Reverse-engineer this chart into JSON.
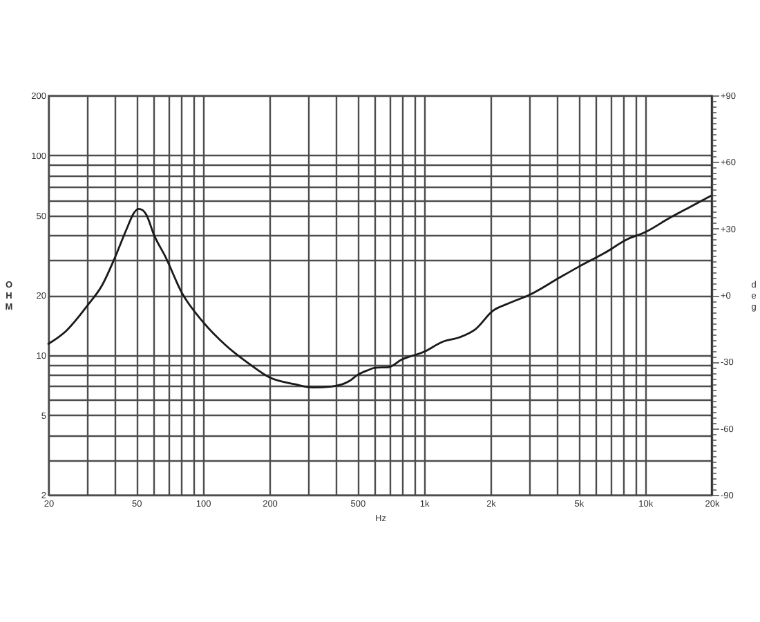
{
  "chart_data": {
    "type": "line",
    "xlabel": "Hz",
    "ylabel": "OHM",
    "y2label": "deg",
    "log": "xy",
    "grid": true,
    "line_style": "solid",
    "x": [
      20,
      24,
      30,
      35,
      40,
      45,
      49,
      51,
      53,
      55.5,
      60,
      68,
      80,
      100,
      127,
      161,
      200,
      260,
      315,
      380,
      460,
      500,
      560,
      600,
      690,
      790,
      1000,
      1220,
      1450,
      1710,
      2050,
      2390,
      3040,
      4060,
      5000,
      6560,
      8330,
      10000,
      12800,
      16300,
      20000
    ],
    "series": [
      {
        "color": "#1a1a1a",
        "values": [
          11.4,
          13.2,
          17.7,
          22.4,
          30.8,
          42.4,
          52,
          54,
          53.5,
          50.5,
          40.2,
          30.8,
          20.7,
          14.7,
          11.2,
          9.1,
          7.75,
          7.16,
          6.9,
          6.97,
          7.43,
          7.96,
          8.43,
          8.66,
          8.71,
          9.49,
          10.4,
          11.7,
          12.3,
          13.5,
          16.7,
          18.1,
          20.2,
          24.3,
          27.7,
          32.5,
          38.1,
          41.3,
          48.4,
          55.9,
          63.1
        ]
      }
    ],
    "xlim": [
      20,
      20000
    ],
    "xticks": [
      20,
      {
        "value": 30,
        "label": null
      },
      {
        "value": 40,
        "label": null
      },
      50,
      {
        "value": 60,
        "label": null
      },
      {
        "value": 70,
        "label": null
      },
      {
        "value": 80,
        "label": null
      },
      {
        "value": 90,
        "label": null
      },
      100,
      200,
      {
        "value": 300,
        "label": null
      },
      {
        "value": 400,
        "label": null
      },
      500,
      {
        "value": 600,
        "label": null
      },
      {
        "value": 700,
        "label": null
      },
      {
        "value": 800,
        "label": null
      },
      {
        "value": 900,
        "label": null
      },
      {
        "value": 1000,
        "label": "1k"
      },
      {
        "value": 2000,
        "label": "2k"
      },
      {
        "value": 3000,
        "label": null
      },
      {
        "value": 4000,
        "label": null
      },
      {
        "value": 5000,
        "label": "5k"
      },
      {
        "value": 6000,
        "label": null
      },
      {
        "value": 7000,
        "label": null
      },
      {
        "value": 8000,
        "label": null
      },
      {
        "value": 9000,
        "label": null
      },
      {
        "value": 10000,
        "label": "10k"
      },
      {
        "value": 20000,
        "label": "20k"
      }
    ],
    "ylim": [
      2,
      200
    ],
    "yticks": [
      2,
      {
        "value": 3,
        "label": null
      },
      {
        "value": 4,
        "label": null
      },
      5,
      {
        "value": 6,
        "label": null
      },
      {
        "value": 7,
        "label": null
      },
      {
        "value": 8,
        "label": null
      },
      {
        "value": 9,
        "label": null
      },
      10,
      20,
      {
        "value": 30,
        "label": null
      },
      {
        "value": 40,
        "label": null
      },
      50,
      {
        "value": 60,
        "label": null
      },
      {
        "value": 70,
        "label": null
      },
      {
        "value": 80,
        "label": null
      },
      {
        "value": 90,
        "label": null
      },
      100,
      200
    ],
    "y2lim": [
      -90,
      90
    ],
    "y2ticks": [
      {
        "value": 90,
        "label": "+90"
      },
      {
        "value": 87.5,
        "label": null
      },
      {
        "value": 85,
        "label": null
      },
      {
        "value": 82.5,
        "label": null
      },
      {
        "value": 80,
        "label": null
      },
      {
        "value": 77.5,
        "label": null
      },
      {
        "value": 75,
        "label": null
      },
      {
        "value": 72.5,
        "label": null
      },
      {
        "value": 70,
        "label": null
      },
      {
        "value": 67.5,
        "label": null
      },
      {
        "value": 65,
        "label": null
      },
      {
        "value": 62.5,
        "label": null
      },
      {
        "value": 60,
        "label": "+60"
      },
      {
        "value": 57.5,
        "label": null
      },
      {
        "value": 55,
        "label": null
      },
      {
        "value": 52.5,
        "label": null
      },
      {
        "value": 50,
        "label": null
      },
      {
        "value": 47.5,
        "label": null
      },
      {
        "value": 45,
        "label": null
      },
      {
        "value": 42.5,
        "label": null
      },
      {
        "value": 40,
        "label": null
      },
      {
        "value": 37.5,
        "label": null
      },
      {
        "value": 35,
        "label": null
      },
      {
        "value": 32.5,
        "label": null
      },
      {
        "value": 30,
        "label": "+30"
      },
      {
        "value": 27.5,
        "label": null
      },
      {
        "value": 25,
        "label": null
      },
      {
        "value": 22.5,
        "label": null
      },
      {
        "value": 20,
        "label": null
      },
      {
        "value": 17.5,
        "label": null
      },
      {
        "value": 15,
        "label": null
      },
      {
        "value": 12.5,
        "label": null
      },
      {
        "value": 10,
        "label": null
      },
      {
        "value": 7.5,
        "label": null
      },
      {
        "value": 5,
        "label": null
      },
      {
        "value": 2.5,
        "label": null
      },
      {
        "value": 0,
        "label": "+0"
      },
      {
        "value": -2.5,
        "label": null
      },
      {
        "value": -5,
        "label": null
      },
      {
        "value": -7.5,
        "label": null
      },
      {
        "value": -10,
        "label": null
      },
      {
        "value": -12.5,
        "label": null
      },
      {
        "value": -15,
        "label": null
      },
      {
        "value": -17.5,
        "label": null
      },
      {
        "value": -20,
        "label": null
      },
      {
        "value": -22.5,
        "label": null
      },
      {
        "value": -25,
        "label": null
      },
      {
        "value": -27.5,
        "label": null
      },
      {
        "value": -30,
        "label": "-30"
      },
      {
        "value": -32.5,
        "label": null
      },
      {
        "value": -35,
        "label": null
      },
      {
        "value": -37.5,
        "label": null
      },
      {
        "value": -40,
        "label": null
      },
      {
        "value": -42.5,
        "label": null
      },
      {
        "value": -45,
        "label": null
      },
      {
        "value": -47.5,
        "label": null
      },
      {
        "value": -50,
        "label": null
      },
      {
        "value": -52.5,
        "label": null
      },
      {
        "value": -55,
        "label": null
      },
      {
        "value": -57.5,
        "label": null
      },
      {
        "value": -60,
        "label": "-60"
      },
      {
        "value": -62.5,
        "label": null
      },
      {
        "value": -65,
        "label": null
      },
      {
        "value": -67.5,
        "label": null
      },
      {
        "value": -70,
        "label": null
      },
      {
        "value": -72.5,
        "label": null
      },
      {
        "value": -75,
        "label": null
      },
      {
        "value": -77.5,
        "label": null
      },
      {
        "value": -80,
        "label": null
      },
      {
        "value": -82.5,
        "label": null
      },
      {
        "value": -85,
        "label": null
      },
      {
        "value": -87.5,
        "label": null
      },
      {
        "value": -90,
        "label": "-90"
      }
    ]
  }
}
